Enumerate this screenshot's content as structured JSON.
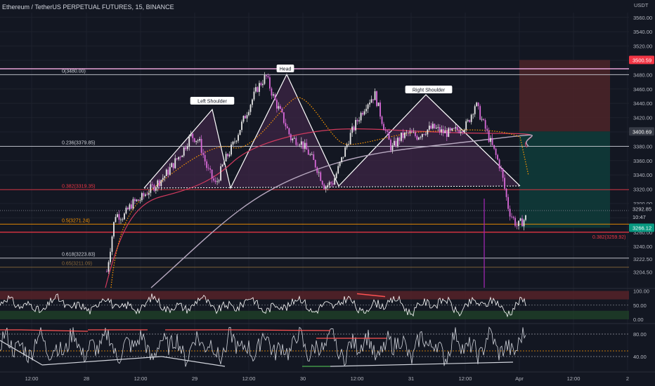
{
  "header": {
    "title": "Ethereum / TetherUS PERPETUAL FUTURES, 15, BINANCE"
  },
  "price_scale": {
    "currency": "USDT"
  },
  "chart_data": [
    {
      "type": "line",
      "name": "price-panel",
      "symbol": "ETHUSDT.P",
      "timeframe": "15",
      "y_ticks": [
        "3560.00",
        "3540.00",
        "3520.00",
        "3500.00",
        "3480.00",
        "3460.00",
        "3440.00",
        "3420.00",
        "3400.00",
        "3380.00",
        "3360.00",
        "3340.00",
        "3320.00",
        "3300.00",
        "3280.00",
        "3260.00",
        "3240.00",
        "3222.50",
        "3204.50"
      ],
      "ylim": [
        3200,
        3570
      ],
      "x_ticks": [
        "12:00",
        "28",
        "12:00",
        "29",
        "12:00",
        "30",
        "12:00",
        "31",
        "12:00",
        "Apr",
        "12:00",
        "2"
      ],
      "price_series": {
        "t": [
          0,
          1,
          2,
          3,
          4,
          5,
          6,
          7,
          8,
          9,
          10,
          11,
          12,
          13,
          14,
          15,
          16,
          17,
          18,
          19,
          20,
          21,
          22,
          23,
          24,
          25,
          26,
          27,
          28,
          29,
          30,
          31,
          32,
          33,
          34,
          35,
          36,
          37,
          38,
          39,
          40,
          41,
          42,
          43,
          44,
          45,
          46,
          47,
          48,
          49,
          50
        ],
        "close": [
          3205,
          3285,
          3282,
          3300,
          3306,
          3318,
          3328,
          3340,
          3356,
          3372,
          3395,
          3388,
          3348,
          3326,
          3358,
          3380,
          3408,
          3436,
          3462,
          3478,
          3445,
          3420,
          3390,
          3388,
          3372,
          3352,
          3324,
          3330,
          3360,
          3394,
          3418,
          3440,
          3452,
          3410,
          3376,
          3392,
          3398,
          3394,
          3402,
          3406,
          3400,
          3398,
          3404,
          3410,
          3440,
          3410,
          3380,
          3350,
          3290,
          3268,
          3280
        ]
      },
      "pattern": {
        "labels": [
          "Left Shoulder",
          "Head",
          "Right Shoulder"
        ],
        "neckline_price": 3326
      },
      "fib_levels": [
        {
          "label": "0(3480.00)",
          "price": 3480.0,
          "color": "#d1d4dc"
        },
        {
          "label": "0.236(3379.85)",
          "price": 3379.85,
          "color": "#d1d4dc"
        },
        {
          "label": "0.382(3319.35)",
          "price": 3319.35,
          "color": "#f23645"
        },
        {
          "label": "0.5(3271.24)",
          "price": 3271.24,
          "color": "#ff9800"
        },
        {
          "label": "0.618(3223.83)",
          "price": 3223.83,
          "color": "#d1d4dc"
        },
        {
          "label": "0.65(3211.09)",
          "price": 3211.09,
          "color": "#8c6a3a"
        }
      ],
      "second_fib_label": {
        "label": "0.382(3259.92)",
        "price": 3259.92,
        "color": "#f23645"
      },
      "price_badges": [
        {
          "text": "3500.59",
          "price": 3500.59,
          "color": "#f23645"
        },
        {
          "text": "3400.69",
          "price": 3400.69,
          "color": "#363a45"
        },
        {
          "text": "3292.85",
          "price": 3292.85,
          "color": "#131722"
        },
        {
          "text": "10:47",
          "price": 3286.5,
          "color": "#131722"
        },
        {
          "text": "3266.12",
          "price": 3266.12,
          "color": "#089981"
        }
      ],
      "position": {
        "target": 3500.59,
        "entry": 3400.69,
        "stop": 3266.12
      }
    },
    {
      "type": "line",
      "name": "oscillator-1",
      "y_ticks": [
        "100.00",
        "50.00",
        "0.00"
      ],
      "ylim": [
        0,
        100
      ]
    },
    {
      "type": "line",
      "name": "oscillator-2",
      "y_ticks": [
        "80.00",
        "40.00"
      ],
      "ylim": [
        20,
        95
      ]
    }
  ],
  "colors": {
    "background": "#131722",
    "grid": "#1e222d",
    "pattern_fill": "#3d2546",
    "ema_fast": "#ff9800",
    "ema_mid": "#d13a5e",
    "ema_slow": "#b7a8c0",
    "profit_zone": "#0f3a38",
    "loss_zone": "#4a2328",
    "osc_overbought": "#5a2329",
    "osc_oversold": "#1f4028"
  }
}
